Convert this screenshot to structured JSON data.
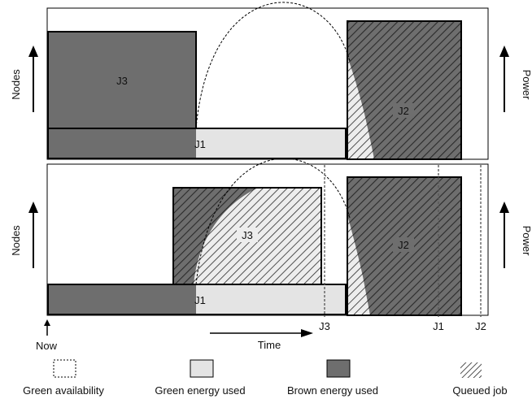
{
  "top_panel": {
    "jobs": {
      "j3": "J3",
      "j1": "J1",
      "j2": "J2"
    },
    "y_left": "Nodes",
    "y_right": "Power"
  },
  "bottom_panel": {
    "jobs": {
      "j3": "J3",
      "j1": "J1",
      "j2": "J2"
    },
    "y_left": "Nodes",
    "y_right": "Power",
    "deadlines": {
      "j3": "J3",
      "j1": "J1",
      "j2": "J2"
    }
  },
  "axis": {
    "now": "Now",
    "time": "Time"
  },
  "legend": {
    "green_availability": "Green availability",
    "green_energy_used": "Green energy used",
    "brown_energy_used": "Brown energy used",
    "queued_job": "Queued job"
  },
  "colors": {
    "brown": "#6e6e6e",
    "green": "#e4e4e4",
    "outline": "#000000"
  }
}
